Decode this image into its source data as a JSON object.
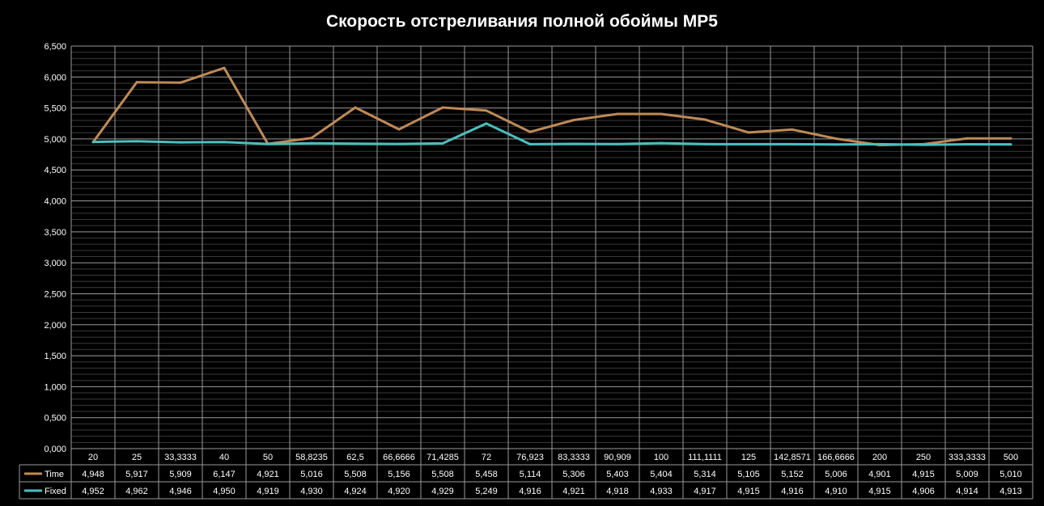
{
  "chart_data": {
    "type": "line",
    "title": "Скорость отстреливания полной обоймы MP5",
    "xlabel": "",
    "ylabel": "",
    "ylim": [
      0,
      6.5
    ],
    "ytick_labels": [
      "0,000",
      "0,500",
      "1,000",
      "1,500",
      "2,000",
      "2,500",
      "3,000",
      "3,500",
      "4,000",
      "4,500",
      "5,000",
      "5,500",
      "6,000",
      "6,500"
    ],
    "grid": true,
    "legend": "data-table",
    "categories": [
      "20",
      "25",
      "33,3333",
      "40",
      "50",
      "58,8235",
      "62,5",
      "66,6666",
      "71,4285",
      "72",
      "76,923",
      "83,3333",
      "90,909",
      "100",
      "111,1111",
      "125",
      "142,8571",
      "166,6666",
      "200",
      "250",
      "333,3333",
      "500"
    ],
    "series": [
      {
        "name": "Time",
        "color": "#c08a55",
        "values": [
          4.948,
          5.917,
          5.909,
          6.147,
          4.921,
          5.016,
          5.508,
          5.156,
          5.508,
          5.458,
          5.114,
          5.306,
          5.403,
          5.404,
          5.314,
          5.105,
          5.152,
          5.006,
          4.901,
          4.915,
          5.009,
          5.01
        ],
        "labels": [
          "4,948",
          "5,917",
          "5,909",
          "6,147",
          "4,921",
          "5,016",
          "5,508",
          "5,156",
          "5,508",
          "5,458",
          "5,114",
          "5,306",
          "5,403",
          "5,404",
          "5,314",
          "5,105",
          "5,152",
          "5,006",
          "4,901",
          "4,915",
          "5,009",
          "5,010"
        ]
      },
      {
        "name": "Fixed",
        "color": "#4bbfc0",
        "values": [
          4.952,
          4.962,
          4.946,
          4.95,
          4.919,
          4.93,
          4.924,
          4.92,
          4.929,
          5.249,
          4.916,
          4.921,
          4.918,
          4.933,
          4.917,
          4.915,
          4.916,
          4.91,
          4.915,
          4.906,
          4.914,
          4.913
        ],
        "labels": [
          "4,952",
          "4,962",
          "4,946",
          "4,950",
          "4,919",
          "4,930",
          "4,924",
          "4,920",
          "4,929",
          "5,249",
          "4,916",
          "4,921",
          "4,918",
          "4,933",
          "4,917",
          "4,915",
          "4,916",
          "4,910",
          "4,915",
          "4,906",
          "4,914",
          "4,913"
        ]
      }
    ]
  }
}
